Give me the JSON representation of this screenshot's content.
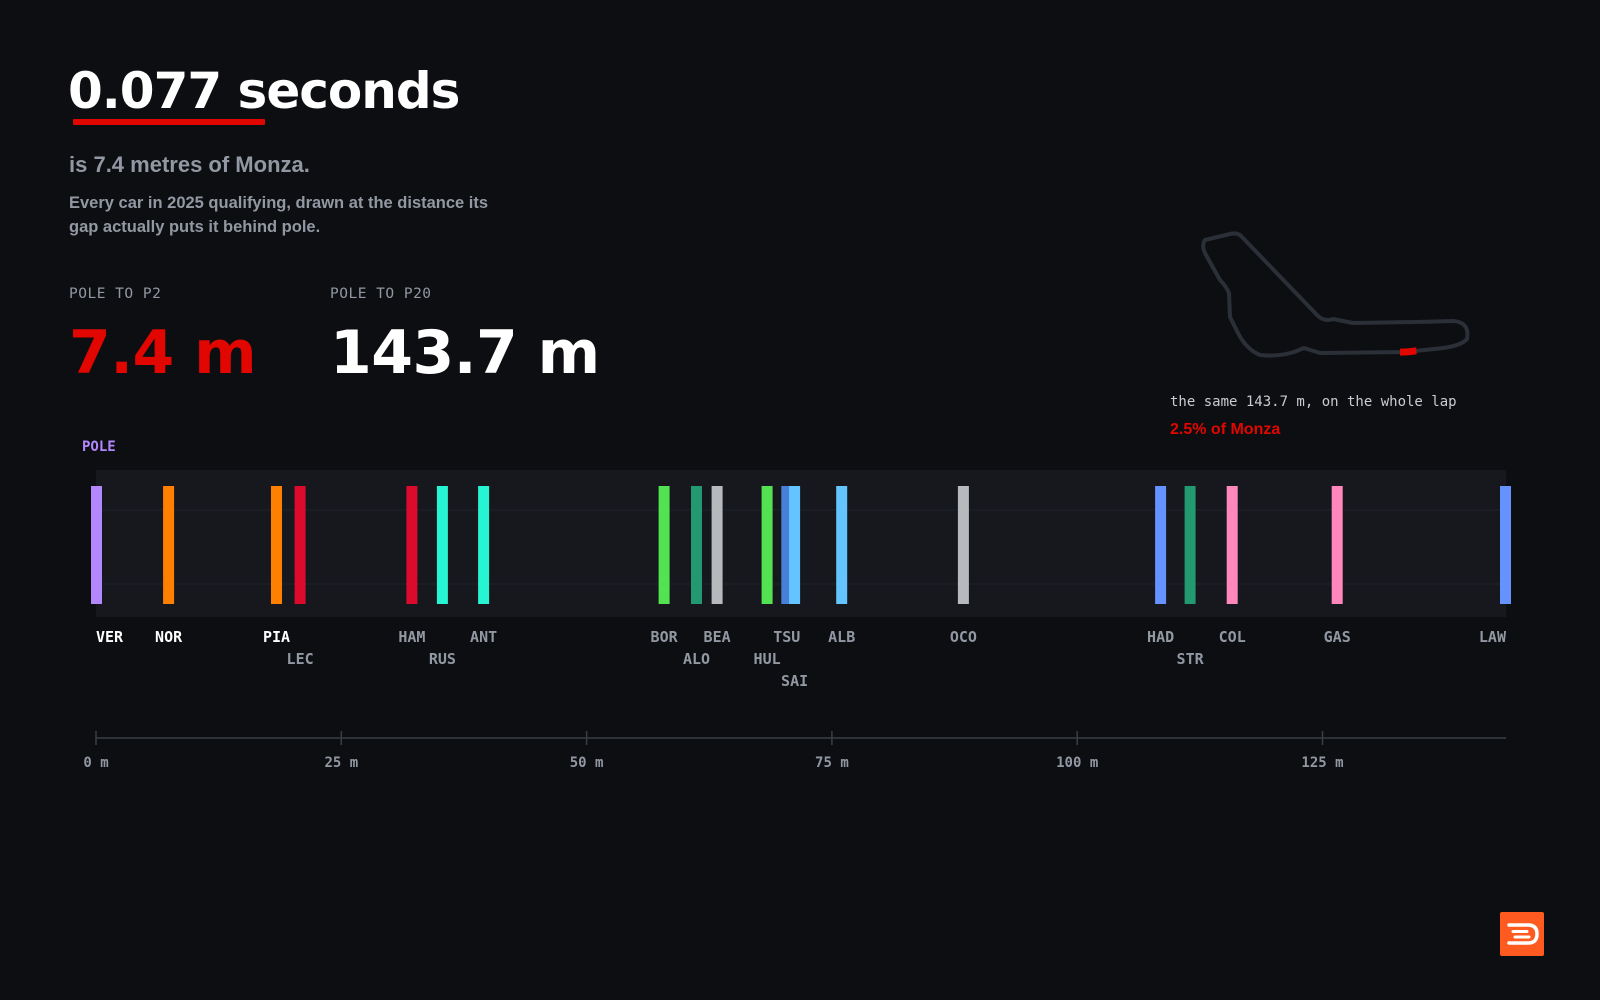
{
  "hero": {
    "headline": "0.077 seconds",
    "subtitle": "is 7.4 metres of Monza.",
    "description": "Every car in 2025 qualifying, drawn at the distance its gap actually puts it behind pole."
  },
  "stats": {
    "p2_label": "POLE TO P2",
    "p2_value": "7.4 m",
    "p20_label": "POLE TO P20",
    "p20_value": "143.7 m"
  },
  "track": {
    "caption": "the same 143.7 m, on the whole lap",
    "percent_label": "2.5% of Monza",
    "highlight_fraction": 0.025
  },
  "colors": {
    "accent_red": "#e10600",
    "pole_purple": "#b388ff",
    "background": "#0d0e11",
    "muted_text": "#9298a3",
    "logo_orange": "#ff5a1f"
  },
  "chart_data": {
    "type": "strip",
    "pole_label": "POLE",
    "xlim": [
      0,
      143.7
    ],
    "x_unit": "m",
    "x_ticks": [
      {
        "value": 0,
        "label": "0 m"
      },
      {
        "value": 25,
        "label": "25 m"
      },
      {
        "value": 50,
        "label": "50 m"
      },
      {
        "value": 75,
        "label": "75 m"
      },
      {
        "value": 100,
        "label": "100 m"
      },
      {
        "value": 125,
        "label": "125 m"
      }
    ],
    "drivers": [
      {
        "code": "VER",
        "gap_m": 0.0,
        "color": "#b388ff"
      },
      {
        "code": "NOR",
        "gap_m": 7.4,
        "color": "#ff8000"
      },
      {
        "code": "PIA",
        "gap_m": 18.4,
        "color": "#ff8000"
      },
      {
        "code": "LEC",
        "gap_m": 20.8,
        "color": "#dc0a2d"
      },
      {
        "code": "HAM",
        "gap_m": 32.2,
        "color": "#dc0a2d"
      },
      {
        "code": "RUS",
        "gap_m": 35.3,
        "color": "#27f4d2"
      },
      {
        "code": "ANT",
        "gap_m": 39.5,
        "color": "#27f4d2"
      },
      {
        "code": "BOR",
        "gap_m": 57.9,
        "color": "#52e252"
      },
      {
        "code": "ALO",
        "gap_m": 61.2,
        "color": "#229971"
      },
      {
        "code": "BEA",
        "gap_m": 63.3,
        "color": "#b6babd"
      },
      {
        "code": "HUL",
        "gap_m": 68.4,
        "color": "#52e252"
      },
      {
        "code": "TSU",
        "gap_m": 70.4,
        "color": "#4781d7"
      },
      {
        "code": "SAI",
        "gap_m": 71.2,
        "color": "#64c4ff"
      },
      {
        "code": "ALB",
        "gap_m": 76.0,
        "color": "#64c4ff"
      },
      {
        "code": "OCO",
        "gap_m": 88.4,
        "color": "#b6babd"
      },
      {
        "code": "HAD",
        "gap_m": 108.5,
        "color": "#6692ff"
      },
      {
        "code": "STR",
        "gap_m": 111.5,
        "color": "#229971"
      },
      {
        "code": "COL",
        "gap_m": 115.8,
        "color": "#ff87bc"
      },
      {
        "code": "GAS",
        "gap_m": 126.5,
        "color": "#ff87bc"
      },
      {
        "code": "LAW",
        "gap_m": 143.7,
        "color": "#6692ff"
      }
    ]
  }
}
